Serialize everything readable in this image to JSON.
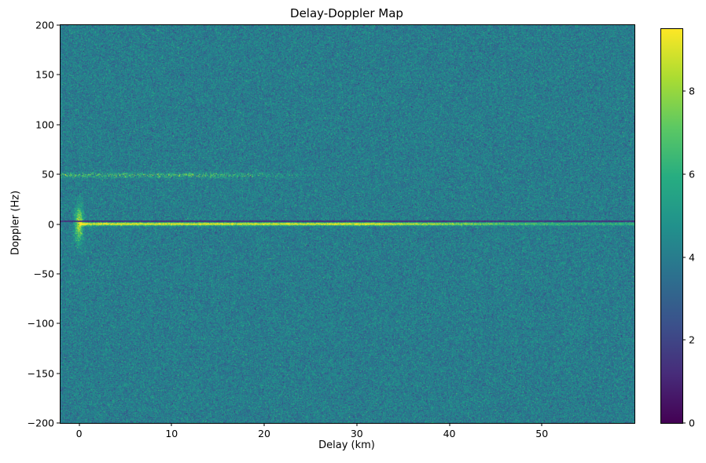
{
  "chart_data": {
    "type": "heatmap",
    "title": "Delay-Doppler Map",
    "xlabel": "Delay (km)",
    "ylabel": "Doppler (Hz)",
    "xlim": [
      -2,
      60
    ],
    "ylim": [
      -200,
      200
    ],
    "grid": false,
    "xticks": [
      {
        "value": 0,
        "label": "0"
      },
      {
        "value": 10,
        "label": "10"
      },
      {
        "value": 20,
        "label": "20"
      },
      {
        "value": 30,
        "label": "30"
      },
      {
        "value": 40,
        "label": "40"
      },
      {
        "value": 50,
        "label": "50"
      }
    ],
    "yticks": [
      {
        "value": 200,
        "label": "200"
      },
      {
        "value": 150,
        "label": "150"
      },
      {
        "value": 100,
        "label": "100"
      },
      {
        "value": 50,
        "label": "50"
      },
      {
        "value": 0,
        "label": "0"
      },
      {
        "value": -50,
        "label": "−50"
      },
      {
        "value": -100,
        "label": "−100"
      },
      {
        "value": -150,
        "label": "−150"
      },
      {
        "value": -200,
        "label": "−200"
      }
    ],
    "colorbar": {
      "vmin": 0,
      "vmax": 9.5,
      "ticks": [
        {
          "value": 0,
          "label": "0"
        },
        {
          "value": 2,
          "label": "2"
        },
        {
          "value": 4,
          "label": "4"
        },
        {
          "value": 6,
          "label": "6"
        },
        {
          "value": 8,
          "label": "8"
        }
      ],
      "colormap": "viridis",
      "stops": [
        {
          "t": 0.0,
          "color": "#440154"
        },
        {
          "t": 0.125,
          "color": "#472c7a"
        },
        {
          "t": 0.25,
          "color": "#3b518b"
        },
        {
          "t": 0.375,
          "color": "#2c718e"
        },
        {
          "t": 0.5,
          "color": "#21918c"
        },
        {
          "t": 0.625,
          "color": "#27ad81"
        },
        {
          "t": 0.75,
          "color": "#5cc863"
        },
        {
          "t": 0.875,
          "color": "#aadc32"
        },
        {
          "t": 1.0,
          "color": "#fde725"
        }
      ]
    },
    "noise": {
      "mean": 4.0,
      "std": 0.75,
      "seed": 42
    },
    "features": [
      {
        "name": "zero-doppler-ridge",
        "type": "horizontal-ridge",
        "doppler_hz": 0,
        "delay_start_km": 0,
        "delay_end_km": 60,
        "peak_value": 9.5
      },
      {
        "name": "dark-horizontal-line",
        "type": "horizontal-line",
        "doppler_hz": 3,
        "delay_start_km": -2,
        "delay_end_km": 60,
        "value": 1.0
      },
      {
        "name": "doppler-50-band",
        "type": "speckled-band",
        "doppler_hz": 49,
        "delay_start_km": -2,
        "delay_end_km": 30,
        "peak_value": 8.0
      },
      {
        "name": "origin-vertical-streak",
        "type": "vertical-streak",
        "delay_km": 0,
        "doppler_range_hz": [
          -25,
          25
        ],
        "peak_value": 9.5
      },
      {
        "name": "doppler-minus-50-speckle",
        "type": "speckled-patch",
        "doppler_hz": -48,
        "delay_start_km": 0,
        "delay_end_km": 4,
        "peak_value": 5.5
      }
    ]
  }
}
